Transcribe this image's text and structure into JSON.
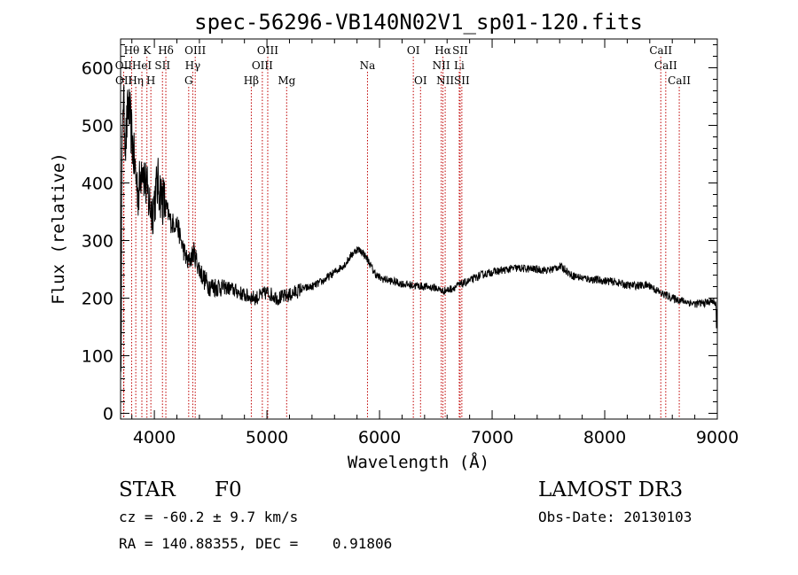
{
  "chart_data": {
    "type": "line",
    "title": "spec-56296-VB140N02V1_sp01-120.fits",
    "xlabel": "Wavelength (Å)",
    "ylabel": "Flux (relative)",
    "xlim": [
      3700,
      9000
    ],
    "ylim": [
      -10,
      650
    ],
    "xticks": [
      4000,
      5000,
      6000,
      7000,
      8000,
      9000
    ],
    "yticks": [
      0,
      100,
      200,
      300,
      400,
      500,
      600
    ],
    "spectrum_outline": [
      [
        3700,
        150
      ],
      [
        3720,
        560
      ],
      [
        3745,
        470
      ],
      [
        3770,
        540
      ],
      [
        3800,
        480
      ],
      [
        3830,
        420
      ],
      [
        3860,
        380
      ],
      [
        3890,
        440
      ],
      [
        3920,
        400
      ],
      [
        3950,
        370
      ],
      [
        3980,
        350
      ],
      [
        4000,
        370
      ],
      [
        4030,
        400
      ],
      [
        4060,
        380
      ],
      [
        4100,
        360
      ],
      [
        4150,
        330
      ],
      [
        4200,
        330
      ],
      [
        4250,
        290
      ],
      [
        4300,
        260
      ],
      [
        4350,
        280
      ],
      [
        4400,
        250
      ],
      [
        4450,
        230
      ],
      [
        4500,
        220
      ],
      [
        4600,
        220
      ],
      [
        4700,
        215
      ],
      [
        4800,
        205
      ],
      [
        4900,
        200
      ],
      [
        5000,
        210
      ],
      [
        5100,
        200
      ],
      [
        5200,
        205
      ],
      [
        5300,
        215
      ],
      [
        5400,
        220
      ],
      [
        5500,
        230
      ],
      [
        5600,
        245
      ],
      [
        5700,
        260
      ],
      [
        5750,
        275
      ],
      [
        5800,
        285
      ],
      [
        5850,
        280
      ],
      [
        5900,
        265
      ],
      [
        5950,
        245
      ],
      [
        6000,
        235
      ],
      [
        6100,
        230
      ],
      [
        6200,
        225
      ],
      [
        6300,
        222
      ],
      [
        6400,
        220
      ],
      [
        6500,
        218
      ],
      [
        6560,
        212
      ],
      [
        6620,
        215
      ],
      [
        6700,
        222
      ],
      [
        6800,
        230
      ],
      [
        6900,
        240
      ],
      [
        7000,
        245
      ],
      [
        7200,
        252
      ],
      [
        7400,
        250
      ],
      [
        7500,
        248
      ],
      [
        7600,
        255
      ],
      [
        7650,
        250
      ],
      [
        7700,
        240
      ],
      [
        7800,
        235
      ],
      [
        7900,
        232
      ],
      [
        8000,
        230
      ],
      [
        8100,
        228
      ],
      [
        8200,
        222
      ],
      [
        8300,
        222
      ],
      [
        8400,
        222
      ],
      [
        8450,
        215
      ],
      [
        8500,
        208
      ],
      [
        8550,
        205
      ],
      [
        8600,
        200
      ],
      [
        8700,
        195
      ],
      [
        8800,
        190
      ],
      [
        8900,
        192
      ],
      [
        8950,
        195
      ],
      [
        9000,
        190
      ]
    ],
    "lines": [
      {
        "label": "Hθ",
        "wl": 3798,
        "row": 0
      },
      {
        "label": "OII",
        "wl": 3727,
        "row": 1
      },
      {
        "label": "OII",
        "wl": 3729,
        "row": 2
      },
      {
        "label": "Hη",
        "wl": 3835,
        "row": 2
      },
      {
        "label": "HeI",
        "wl": 3889,
        "row": 1
      },
      {
        "label": "K",
        "wl": 3934,
        "row": 0
      },
      {
        "label": "H",
        "wl": 3969,
        "row": 2
      },
      {
        "label": "SII",
        "wl": 4072,
        "row": 1
      },
      {
        "label": "Hδ",
        "wl": 4102,
        "row": 0
      },
      {
        "label": "Hγ",
        "wl": 4341,
        "row": 1
      },
      {
        "label": "G",
        "wl": 4305,
        "row": 2
      },
      {
        "label": "OIII",
        "wl": 4363,
        "row": 0
      },
      {
        "label": "Hβ",
        "wl": 4861,
        "row": 2
      },
      {
        "label": "OIII",
        "wl": 4959,
        "row": 1
      },
      {
        "label": "OIII",
        "wl": 5007,
        "row": 0
      },
      {
        "label": "Mg",
        "wl": 5175,
        "row": 2
      },
      {
        "label": "Na",
        "wl": 5893,
        "row": 1
      },
      {
        "label": "OI",
        "wl": 6300,
        "row": 0
      },
      {
        "label": "OI",
        "wl": 6364,
        "row": 2
      },
      {
        "label": "NII",
        "wl": 6548,
        "row": 1
      },
      {
        "label": "Hα",
        "wl": 6563,
        "row": 0
      },
      {
        "label": "NII",
        "wl": 6583,
        "row": 2
      },
      {
        "label": "Li",
        "wl": 6708,
        "row": 1
      },
      {
        "label": "SII",
        "wl": 6716,
        "row": 0
      },
      {
        "label": "SII",
        "wl": 6731,
        "row": 2
      },
      {
        "label": "CaII",
        "wl": 8498,
        "row": 0
      },
      {
        "label": "CaII",
        "wl": 8542,
        "row": 1
      },
      {
        "label": "CaII",
        "wl": 8662,
        "row": 2
      }
    ],
    "colors": {
      "line_marker": "#c00000",
      "spectrum": "#000000"
    }
  },
  "info": {
    "class": "STAR",
    "subclass": "F0",
    "survey": "LAMOST DR3",
    "cz": "cz = -60.2 ± 9.7 km/s",
    "obs_date": "Obs-Date: 20130103",
    "radec": "RA = 140.88355, DEC =    0.91806"
  }
}
